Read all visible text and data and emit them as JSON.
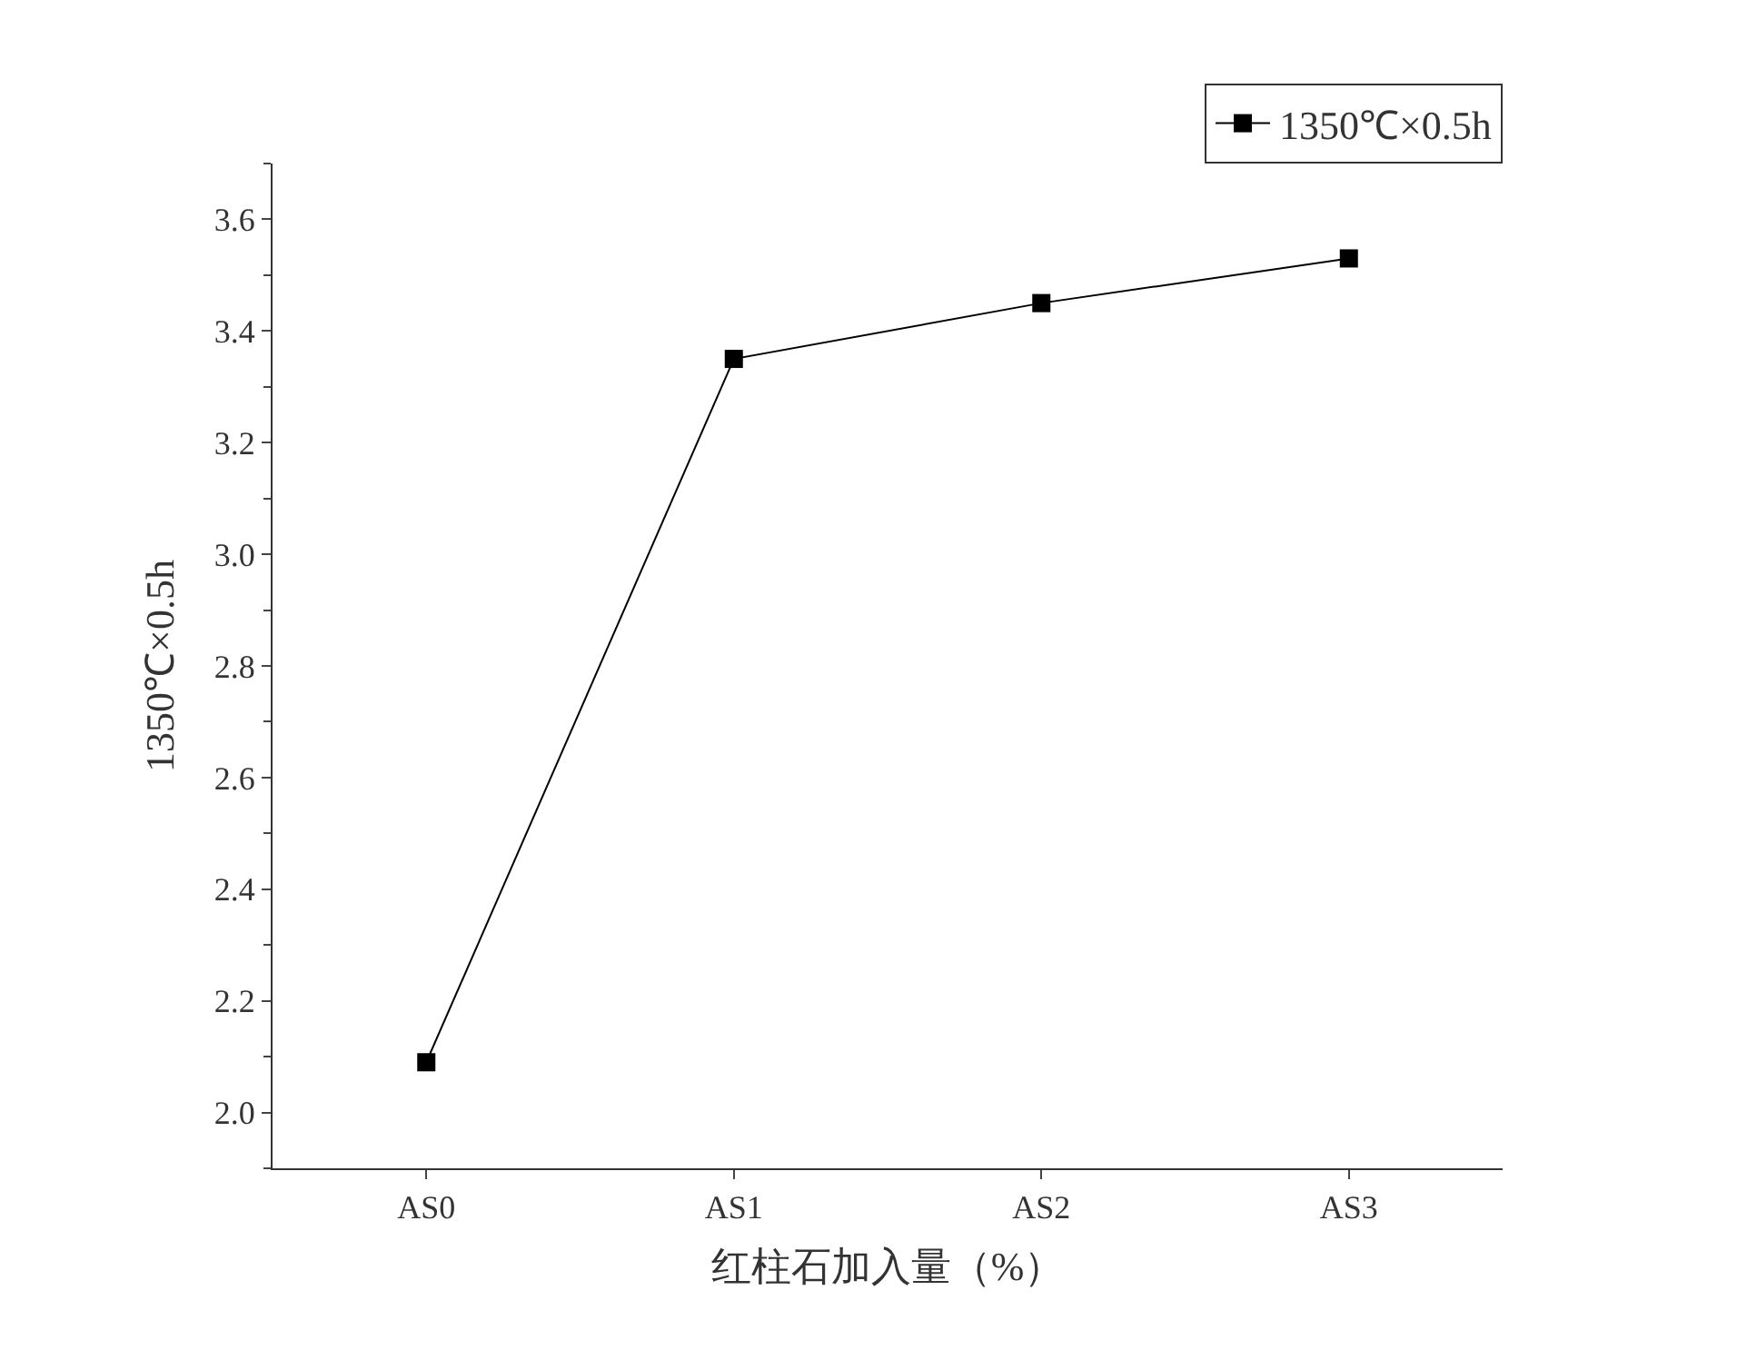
{
  "chart_data": {
    "type": "line",
    "xlabel": "红柱石加入量（%）",
    "ylabel": "1350℃×0.5h",
    "categories": [
      "AS0",
      "AS1",
      "AS2",
      "AS3"
    ],
    "series": [
      {
        "name": "1350℃×0.5h",
        "color": "#000000",
        "values": [
          2.09,
          3.35,
          3.45,
          3.53
        ]
      }
    ],
    "ylim": [
      1.9,
      3.7
    ],
    "yticks": [
      {
        "value": 2.0,
        "label": "2.0"
      },
      {
        "value": 2.2,
        "label": "2.2"
      },
      {
        "value": 2.4,
        "label": "2.4"
      },
      {
        "value": 2.6,
        "label": "2.6"
      },
      {
        "value": 2.8,
        "label": "2.8"
      },
      {
        "value": 3.0,
        "label": "3.0"
      },
      {
        "value": 3.2,
        "label": "3.2"
      },
      {
        "value": 3.4,
        "label": "3.4"
      },
      {
        "value": 3.6,
        "label": "3.6"
      }
    ],
    "legend": "top right",
    "marker": "square",
    "line_style": "solid"
  }
}
